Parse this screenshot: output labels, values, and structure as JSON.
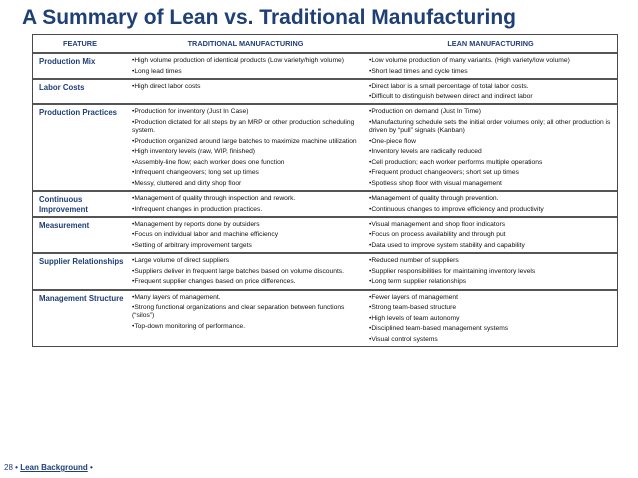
{
  "title": "A Summary of Lean vs. Traditional Manufacturing",
  "headers": {
    "feature": "FEATURE",
    "traditional": "TRADITIONAL MANUFACTURING",
    "lean": "LEAN MANUFACTURING"
  },
  "rows": [
    {
      "feature": "Production Mix",
      "traditional": [
        "•High volume production of identical products (Low variety/high volume)",
        "•Long lead times"
      ],
      "lean": [
        "•Low volume production of many variants. (High variety/low volume)",
        "•Short lead times and cycle times"
      ]
    },
    {
      "feature": "Labor Costs",
      "traditional": [
        "•High direct labor costs"
      ],
      "lean": [
        "•Direct labor is a small percentage of total labor costs.",
        "•Difficult to distinguish between direct and indirect labor"
      ]
    },
    {
      "feature": "Production Practices",
      "traditional": [
        "•Production for inventory (Just In Case)",
        "•Production dictated for all steps by an MRP or other production scheduling system.",
        "•Production organized around large batches to maximize machine utilization",
        "•High inventory levels (raw, WIP, finished)",
        "•Assembly-line flow; each worker does one function",
        "•Infrequent changeovers; long set up times",
        "•Messy, cluttered and dirty shop floor"
      ],
      "lean": [
        "•Production on demand (Just In Time)",
        "•Manufacturing schedule sets the initial order volumes only; all other production is driven by “pull” signals (Kanban)",
        "•One-piece flow",
        "•Inventory levels are radically reduced",
        "•Cell production; each worker performs multiple operations",
        "•Frequent product changeovers; short set up times",
        "•Spotless shop floor with visual management"
      ]
    },
    {
      "feature": "Continuous Improvement",
      "traditional": [
        "•Management of quality through inspection and rework.",
        "•Infrequent changes in production practices."
      ],
      "lean": [
        "•Management of quality through prevention.",
        "•Continuous changes to improve efficiency and productivity"
      ]
    },
    {
      "feature": "Measurement",
      "traditional": [
        "•Management by reports done by outsiders",
        "•Focus on individual labor and machine efficiency",
        "•Setting of arbitrary improvement targets"
      ],
      "lean": [
        "•Visual management and shop floor indicators",
        "•Focus  on process availability and through put",
        "•Data used to improve system stability and capability"
      ]
    },
    {
      "feature": "Supplier Relationships",
      "traditional": [
        "•Large volume of direct suppliers",
        "•Suppliers deliver in frequent large batches based on volume discounts.",
        "•Frequent supplier changes based on price differences."
      ],
      "lean": [
        "•Reduced number of suppliers",
        "•Supplier responsibilities for maintaining inventory levels",
        "•Long term supplier relationships"
      ]
    },
    {
      "feature": "Management Structure",
      "traditional": [
        "•Many layers of management.",
        "•Strong functional organizations and clear separation between functions (“silos”)",
        "•Top-down monitoring of performance."
      ],
      "lean": [
        "•Fewer layers of management",
        "•Strong team-based structure",
        "•High levels of team autonomy",
        "•Disciplined team-based management systems",
        "•Visual control systems"
      ]
    }
  ],
  "footer": {
    "page_number": "28",
    "bullet": "•",
    "link_text": "Lean Background",
    "trailing": "•"
  }
}
